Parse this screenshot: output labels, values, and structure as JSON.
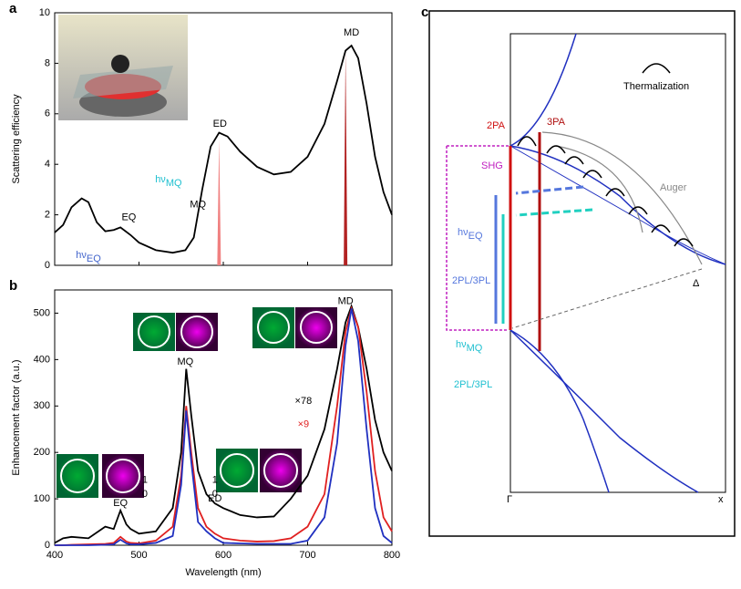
{
  "chart_data": [
    {
      "type": "line",
      "panel_label": "a",
      "ylabel": "Scattering efficiency",
      "xlim": [
        400,
        800
      ],
      "xticks": [
        400,
        500,
        600,
        700,
        800
      ],
      "ylim": [
        0,
        10
      ],
      "yticks": [
        0,
        2,
        4,
        6,
        8,
        10
      ],
      "x": [
        400,
        410,
        420,
        432,
        440,
        450,
        460,
        470,
        478,
        490,
        500,
        520,
        540,
        555,
        565,
        575,
        585,
        595,
        605,
        620,
        640,
        660,
        680,
        700,
        720,
        735,
        745,
        752,
        760,
        770,
        780,
        790,
        800
      ],
      "series": [
        {
          "color": "#000000",
          "values": [
            1.3,
            1.6,
            2.3,
            2.65,
            2.5,
            1.7,
            1.35,
            1.4,
            1.5,
            1.2,
            0.9,
            0.6,
            0.5,
            0.6,
            1.1,
            3.0,
            4.7,
            5.25,
            5.1,
            4.5,
            3.9,
            3.6,
            3.7,
            4.3,
            5.6,
            7.3,
            8.5,
            8.7,
            8.2,
            6.4,
            4.3,
            2.9,
            2.0
          ]
        }
      ],
      "spikes": [
        {
          "x": 595,
          "value": 5,
          "color": "#f08080"
        },
        {
          "x": 745,
          "value": 8.5,
          "color": "#b22222"
        }
      ],
      "annotations": [
        {
          "text": "MD",
          "x": 752,
          "y": 9.2,
          "color": "#000"
        },
        {
          "text": "ED",
          "x": 596,
          "y": 5.6,
          "color": "#000"
        },
        {
          "text": "MQ",
          "x": 570,
          "y": 2.4,
          "color": "#000"
        },
        {
          "text": "EQ",
          "x": 488,
          "y": 1.9,
          "color": "#000"
        },
        {
          "text": "hν",
          "sub": "MQ",
          "x": 535,
          "y": 3.4,
          "color": "#20c0d0"
        },
        {
          "text": "hν",
          "sub": "EQ",
          "x": 440,
          "y": 0.4,
          "color": "#4466cc"
        }
      ]
    },
    {
      "type": "line",
      "panel_label": "b",
      "ylabel": "Enhancement factor (a.u.)",
      "xlabel": "Wavelength (nm)",
      "xlim": [
        400,
        800
      ],
      "xticks": [
        400,
        500,
        600,
        700,
        800
      ],
      "ylim": [
        0,
        550
      ],
      "yticks": [
        0,
        100,
        200,
        300,
        400,
        500
      ],
      "x": [
        400,
        410,
        420,
        440,
        460,
        470,
        478,
        485,
        490,
        500,
        520,
        540,
        550,
        556,
        562,
        570,
        580,
        590,
        600,
        620,
        640,
        660,
        680,
        700,
        720,
        735,
        745,
        752,
        760,
        770,
        780,
        790,
        800
      ],
      "series": [
        {
          "color": "#000000",
          "values": [
            5,
            15,
            18,
            15,
            40,
            35,
            75,
            45,
            35,
            25,
            30,
            80,
            200,
            380,
            280,
            160,
            110,
            90,
            80,
            65,
            60,
            62,
            100,
            150,
            250,
            380,
            480,
            515,
            470,
            380,
            270,
            200,
            160
          ]
        },
        {
          "color": "#e02020",
          "values": [
            0,
            0,
            1,
            2,
            3,
            5,
            18,
            8,
            5,
            4,
            10,
            40,
            150,
            300,
            200,
            80,
            40,
            25,
            15,
            10,
            8,
            9,
            15,
            40,
            110,
            300,
            460,
            510,
            470,
            330,
            160,
            60,
            30
          ]
        },
        {
          "color": "#2030c0",
          "values": [
            0,
            0,
            0,
            0,
            1,
            2,
            12,
            4,
            2,
            2,
            5,
            20,
            130,
            290,
            180,
            50,
            30,
            15,
            5,
            4,
            3,
            3,
            3,
            10,
            60,
            220,
            430,
            510,
            440,
            250,
            80,
            20,
            5
          ]
        }
      ],
      "annotations": [
        {
          "text": "MD",
          "x": 745,
          "y": 525,
          "color": "#000"
        },
        {
          "text": "MQ",
          "x": 555,
          "y": 395,
          "color": "#000"
        },
        {
          "text": "EQ",
          "x": 478,
          "y": 90,
          "color": "#000"
        },
        {
          "text": "ED",
          "x": 590,
          "y": 100,
          "color": "#000"
        },
        {
          "text": "×78",
          "x": 695,
          "y": 310,
          "color": "#000"
        },
        {
          "text": "×9",
          "x": 695,
          "y": 260,
          "color": "#e02020"
        },
        {
          "text": "1",
          "x": 507,
          "y": 140,
          "color": "#000"
        },
        {
          "text": "0",
          "x": 507,
          "y": 110,
          "color": "#000"
        },
        {
          "text": "1",
          "x": 590,
          "y": 140,
          "color": "#000"
        },
        {
          "text": "0",
          "x": 590,
          "y": 110,
          "color": "#000"
        }
      ]
    }
  ],
  "diagram": {
    "label": "c",
    "thermalization": "Thermalization",
    "tpa": "2PA",
    "thpa": "3PA",
    "shg": "SHG",
    "auger": "Auger",
    "hv_eq": "hν",
    "hv_eq_sub": "EQ",
    "pl1": "2PL/3PL",
    "hv_mq": "hν",
    "hv_mq_sub": "MQ",
    "pl2": "2PL/3PL",
    "delta": "Δ",
    "gamma": "Γ",
    "xlabel": "x"
  }
}
